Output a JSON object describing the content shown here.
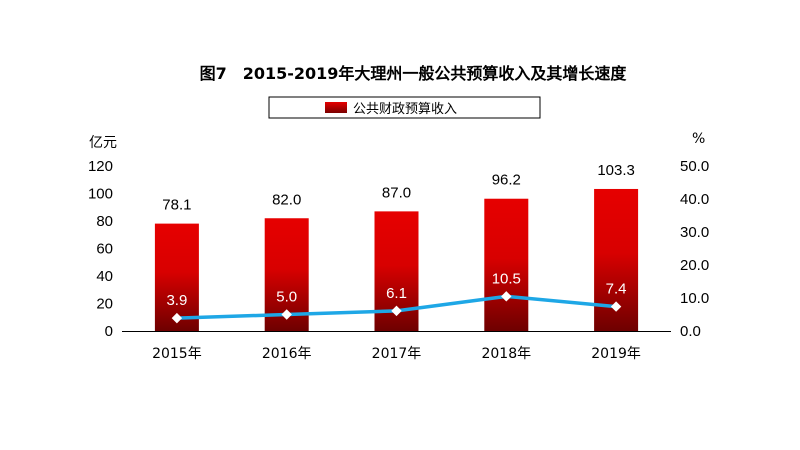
{
  "chart_data": {
    "type": "bar",
    "title": "图7　2015-2019年大理州一般公共预算收入及其增长速度",
    "categories": [
      "2015年",
      "2016年",
      "2017年",
      "2018年",
      "2019年"
    ],
    "series": [
      {
        "name": "公共财政预算收入",
        "type": "bar",
        "axis": "left",
        "values": [
          78.1,
          82.0,
          87.0,
          96.2,
          103.3
        ],
        "labels": [
          "78.1",
          "82.0",
          "87.0",
          "96.2",
          "103.3"
        ]
      },
      {
        "type": "line",
        "axis": "right",
        "values": [
          3.9,
          5.0,
          6.1,
          10.5,
          7.4
        ],
        "labels": [
          "3.9",
          "5.0",
          "6.1",
          "10.5",
          "7.4"
        ]
      }
    ],
    "y_left": {
      "unit": "亿元",
      "range": [
        0,
        120
      ],
      "ticks": [
        "0",
        "20",
        "40",
        "60",
        "80",
        "100",
        "120"
      ]
    },
    "y_right": {
      "unit": "%",
      "range": [
        0,
        50
      ],
      "ticks": [
        "0.0",
        "10.0",
        "20.0",
        "30.0",
        "40.0",
        "50.0"
      ]
    },
    "grid": false,
    "legend": "top-center",
    "colors": {
      "bar_top": "#e60000",
      "bar_bottom": "#7a0000",
      "line": "#1ea7e6",
      "marker": "#ffffff"
    }
  }
}
